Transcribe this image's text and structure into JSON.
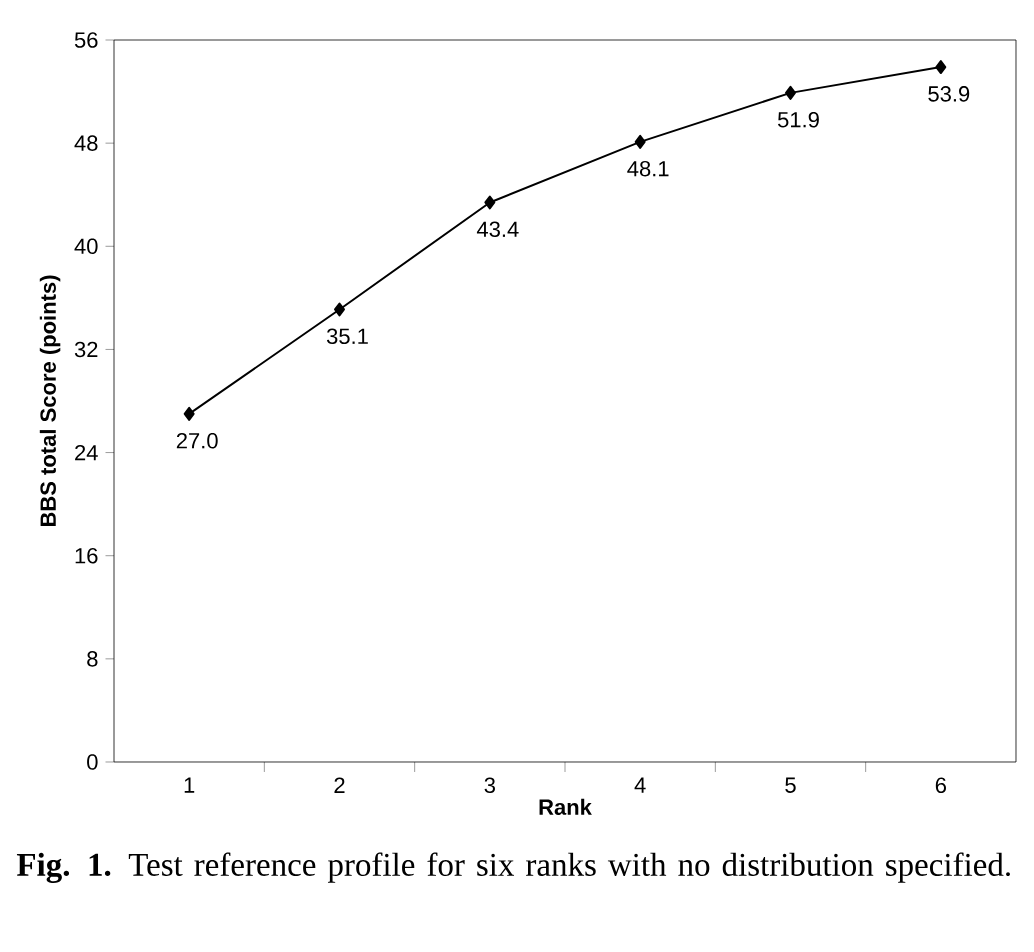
{
  "chart_data": {
    "type": "line",
    "xlabel": "Rank",
    "ylabel": "BBS total Score (points)",
    "categories": [
      "1",
      "2",
      "3",
      "4",
      "5",
      "6"
    ],
    "series": [
      {
        "color": "#000000",
        "values": [
          27.0,
          35.1,
          43.4,
          48.1,
          51.9,
          53.9
        ],
        "value_labels": [
          "27.0",
          "35.1",
          "43.4",
          "48.1",
          "51.9",
          "53.9"
        ]
      }
    ],
    "ylim": [
      0,
      56
    ],
    "yticks": [
      0,
      8,
      16,
      24,
      32,
      40,
      48,
      56
    ],
    "marker": "diamond",
    "line_style": "solid",
    "grid": false,
    "annotations": [
      "**Fig. 1.** Test reference profile for six ranks with no distribution specified."
    ]
  }
}
